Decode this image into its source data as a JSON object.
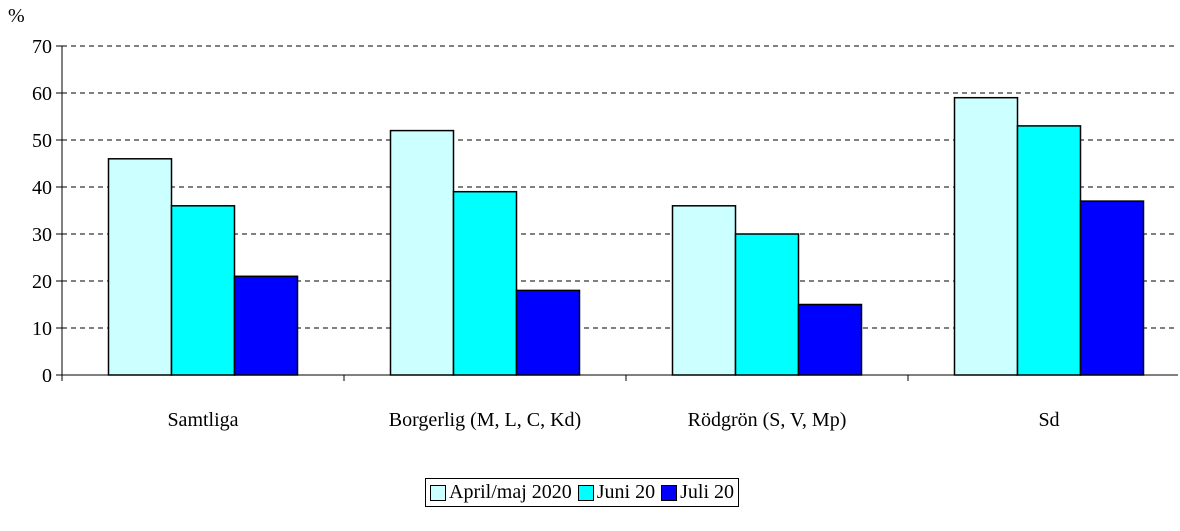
{
  "chart_data": {
    "type": "bar",
    "y_label": "%",
    "categories": [
      "Samtliga",
      "Borgerlig (M, L, C, Kd)",
      "Rödgrön (S, V, Mp)",
      "Sd"
    ],
    "series": [
      {
        "name": "April/maj 2020",
        "color": "#ccffff",
        "values": [
          46,
          52,
          36,
          59
        ]
      },
      {
        "name": "Juni 20",
        "color": "#00ffff",
        "values": [
          36,
          39,
          30,
          53
        ]
      },
      {
        "name": "Juli 20",
        "color": "#0000ff",
        "values": [
          21,
          18,
          15,
          37
        ]
      }
    ],
    "ylim": [
      0,
      70
    ],
    "yticks": [
      0,
      10,
      20,
      30,
      40,
      50,
      60,
      70
    ],
    "grid": true,
    "legend": "bottom"
  }
}
